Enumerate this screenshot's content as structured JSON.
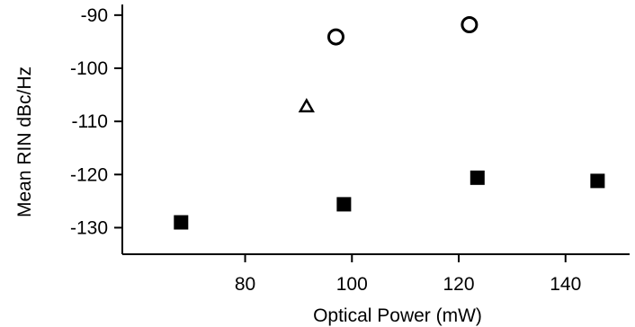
{
  "chart_data": {
    "type": "scatter",
    "title": "",
    "xlabel": "Optical Power (mW)",
    "ylabel": "Mean RIN dBc/Hz",
    "xlim": [
      57,
      152
    ],
    "ylim": [
      -135,
      -88
    ],
    "x_ticks": [
      "80",
      "100",
      "120",
      "140"
    ],
    "x_tick_values": [
      80,
      100,
      120,
      140
    ],
    "y_ticks": [
      "-90",
      "-100",
      "-110",
      "-120",
      "-130"
    ],
    "y_tick_values": [
      -90,
      -100,
      -110,
      -120,
      -130
    ],
    "grid": false,
    "legend": null,
    "series": [
      {
        "marker": "square-filled",
        "color": "#000000",
        "points": [
          {
            "x": 68,
            "y": -129
          },
          {
            "x": 98.5,
            "y": -125.6
          },
          {
            "x": 123.5,
            "y": -120.6
          },
          {
            "x": 146,
            "y": -121.2
          }
        ]
      },
      {
        "marker": "circle-open",
        "color": "#000000",
        "points": [
          {
            "x": 97,
            "y": -94.1
          },
          {
            "x": 122,
            "y": -91.8
          }
        ]
      },
      {
        "marker": "triangle-open",
        "color": "#000000",
        "points": [
          {
            "x": 91.5,
            "y": -107.2
          }
        ]
      }
    ]
  }
}
